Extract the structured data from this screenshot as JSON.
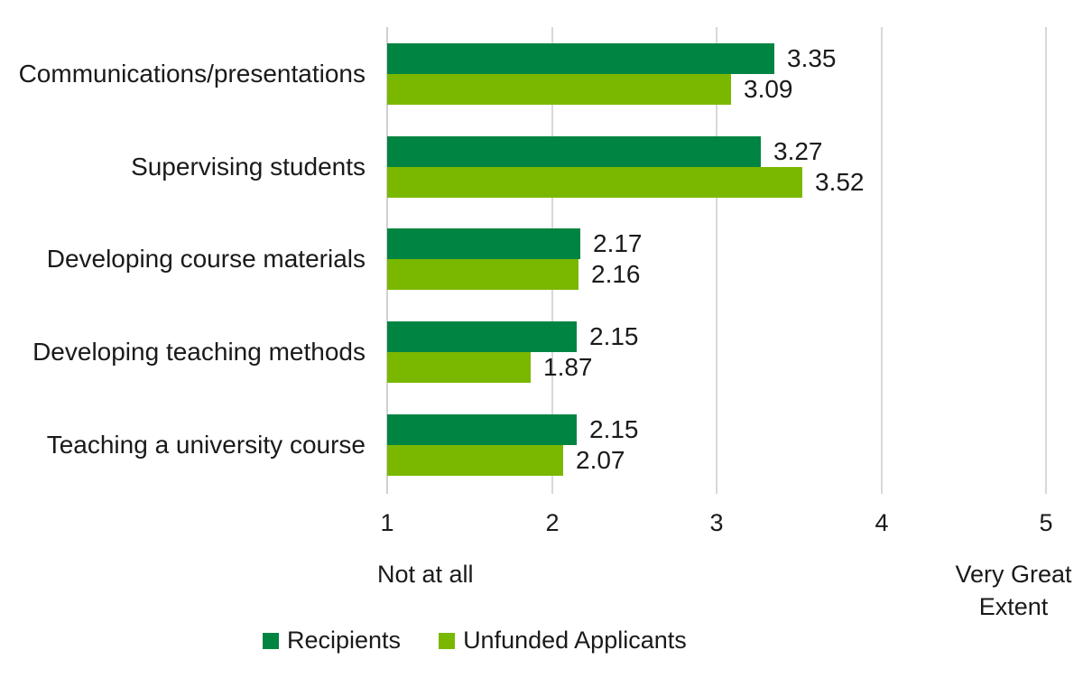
{
  "chart_data": {
    "type": "bar",
    "orientation": "horizontal",
    "title": "",
    "categories": [
      "Communications/presentations",
      "Supervising students",
      "Developing course materials",
      "Developing teaching methods",
      "Teaching a university course"
    ],
    "series": [
      {
        "name": "Recipients",
        "color": "#008442",
        "values": [
          3.35,
          3.27,
          2.17,
          2.15,
          2.15
        ]
      },
      {
        "name": "Unfunded Applicants",
        "color": "#7ab800",
        "values": [
          3.09,
          3.52,
          2.16,
          1.87,
          2.07
        ]
      }
    ],
    "xlim": [
      1,
      5
    ],
    "ticks": [
      "1",
      "2",
      "3",
      "4",
      "5"
    ],
    "axis_end_labels": {
      "min": "Not at all",
      "max": "Very Great Extent"
    },
    "grid": true,
    "data_labels": true,
    "data_label_decimals": 2,
    "legend_position": "bottom",
    "colors": {
      "gridline": "#d8d8d8",
      "text": "#1a1a1a",
      "background": "#ffffff"
    }
  }
}
